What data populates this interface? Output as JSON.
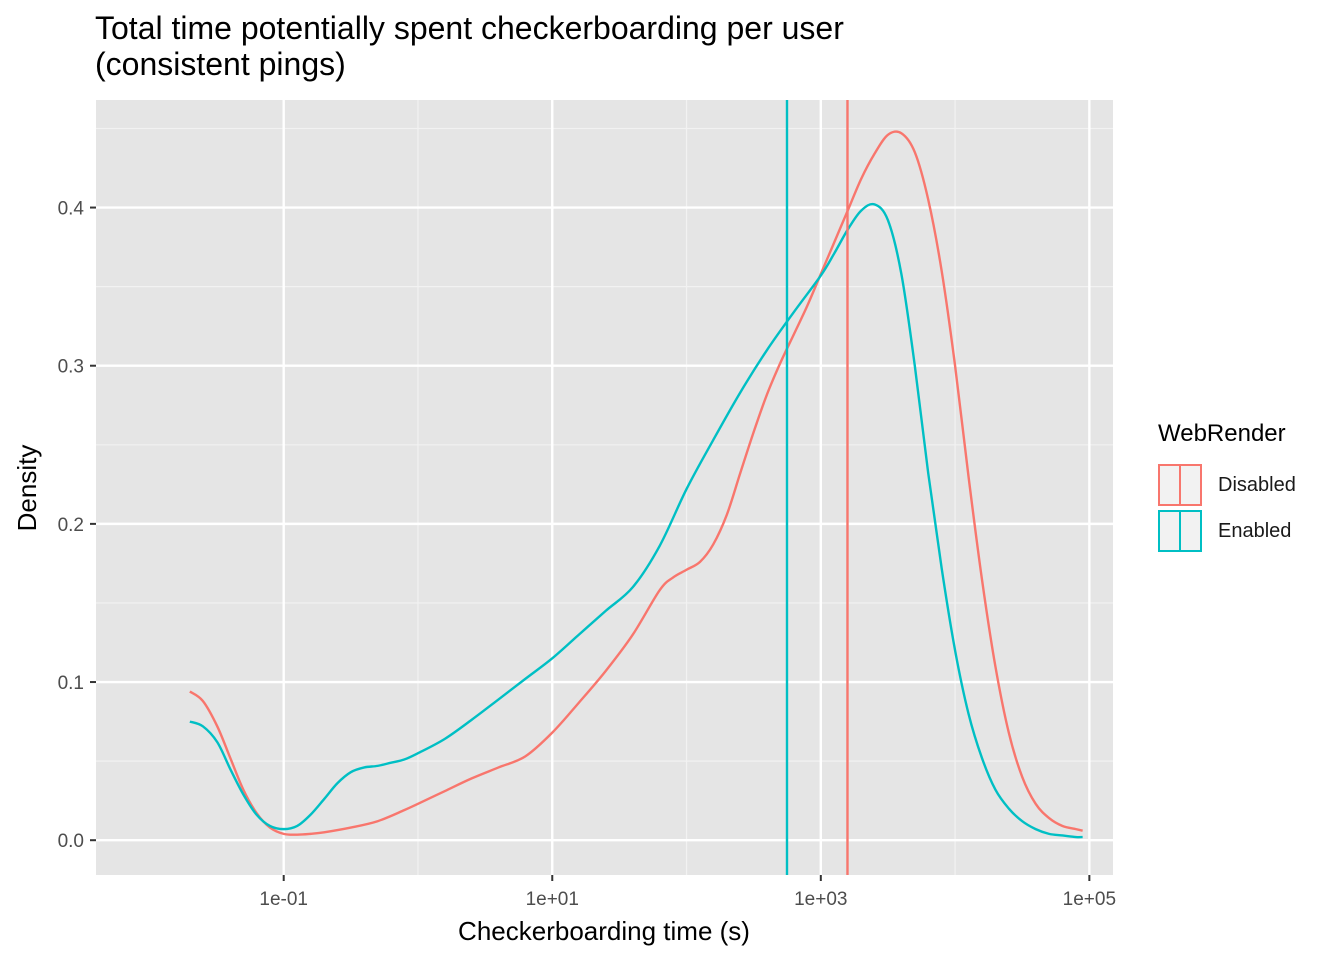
{
  "chart_data": {
    "type": "line",
    "title": "Total time potentially spent checkerboarding per user\n(consistent pings)",
    "xlabel": "Checkerboarding time (s)",
    "ylabel": "Density",
    "x_scale": "log10",
    "xlim": [
      0.004,
      150000
    ],
    "ylim": [
      -0.022,
      0.468
    ],
    "x_ticks": [
      {
        "value": 0.1,
        "label": "1e-01"
      },
      {
        "value": 10,
        "label": "1e+01"
      },
      {
        "value": 1000,
        "label": "1e+03"
      },
      {
        "value": 100000,
        "label": "1e+05"
      }
    ],
    "x_minor_ticks": [
      1,
      100,
      10000
    ],
    "y_ticks": [
      {
        "value": 0.0,
        "label": "0.0"
      },
      {
        "value": 0.1,
        "label": "0.1"
      },
      {
        "value": 0.2,
        "label": "0.2"
      },
      {
        "value": 0.3,
        "label": "0.3"
      },
      {
        "value": 0.4,
        "label": "0.4"
      }
    ],
    "y_minor_ticks": [
      0.05,
      0.15,
      0.25,
      0.35,
      0.45
    ],
    "grid": true,
    "legend": {
      "title": "WebRender",
      "position": "right"
    },
    "series": [
      {
        "name": "Disabled",
        "color": "#F8766D",
        "vline_x": 1580,
        "x": [
          0.02,
          0.025,
          0.032,
          0.04,
          0.05,
          0.063,
          0.079,
          0.1,
          0.126,
          0.158,
          0.2,
          0.316,
          0.5,
          0.79,
          1,
          1.58,
          2.5,
          3.98,
          6.3,
          10,
          15.8,
          25,
          39.8,
          63,
          79,
          100,
          126,
          158,
          200,
          251,
          316,
          398,
          501,
          631,
          794,
          1000,
          1259,
          1585,
          1995,
          2512,
          3162,
          3981,
          5012,
          6310,
          7943,
          10000,
          12589,
          15849,
          19953,
          25119,
          31623,
          39811,
          50119,
          63096,
          79433,
          89125
        ],
        "y": [
          0.094,
          0.088,
          0.072,
          0.052,
          0.032,
          0.017,
          0.008,
          0.004,
          0.0035,
          0.004,
          0.005,
          0.008,
          0.012,
          0.019,
          0.023,
          0.031,
          0.039,
          0.046,
          0.053,
          0.068,
          0.087,
          0.107,
          0.13,
          0.158,
          0.166,
          0.171,
          0.176,
          0.187,
          0.206,
          0.232,
          0.258,
          0.282,
          0.302,
          0.32,
          0.338,
          0.358,
          0.378,
          0.398,
          0.418,
          0.434,
          0.446,
          0.447,
          0.435,
          0.405,
          0.36,
          0.3,
          0.23,
          0.165,
          0.11,
          0.068,
          0.04,
          0.023,
          0.014,
          0.009,
          0.007,
          0.006
        ]
      },
      {
        "name": "Enabled",
        "color": "#00BFC4",
        "vline_x": 560,
        "x": [
          0.02,
          0.025,
          0.032,
          0.04,
          0.05,
          0.063,
          0.079,
          0.1,
          0.126,
          0.158,
          0.2,
          0.251,
          0.316,
          0.398,
          0.5,
          0.63,
          0.79,
          1,
          1.58,
          2.5,
          3.98,
          6.3,
          10,
          15.8,
          25,
          39.8,
          63,
          100,
          158,
          251,
          398,
          631,
          1000,
          1259,
          1585,
          1995,
          2512,
          3162,
          3981,
          5012,
          6310,
          7943,
          10000,
          12589,
          15849,
          19953,
          25119,
          31623,
          39811,
          50119,
          63096,
          79433,
          89125
        ],
        "y": [
          0.075,
          0.072,
          0.062,
          0.045,
          0.029,
          0.016,
          0.009,
          0.007,
          0.009,
          0.016,
          0.026,
          0.036,
          0.043,
          0.046,
          0.047,
          0.049,
          0.051,
          0.055,
          0.064,
          0.076,
          0.089,
          0.102,
          0.115,
          0.13,
          0.145,
          0.16,
          0.186,
          0.222,
          0.253,
          0.283,
          0.31,
          0.334,
          0.357,
          0.371,
          0.386,
          0.398,
          0.402,
          0.392,
          0.358,
          0.3,
          0.232,
          0.172,
          0.12,
          0.08,
          0.052,
          0.032,
          0.02,
          0.012,
          0.007,
          0.004,
          0.003,
          0.002,
          0.002
        ]
      }
    ]
  }
}
